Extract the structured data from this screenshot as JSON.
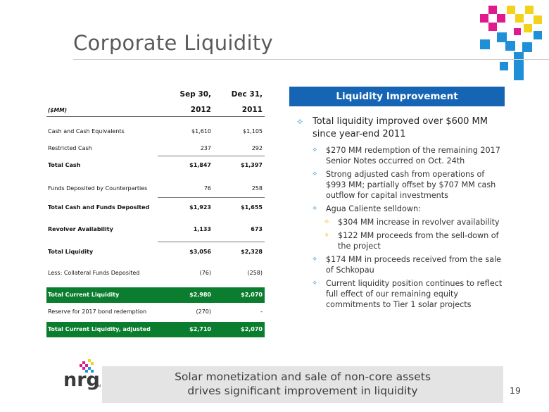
{
  "slide": {
    "title": "Corporate Liquidity",
    "page_number": "19"
  },
  "table": {
    "unit_label": "($MM)",
    "col1_header_line1": "Sep 30,",
    "col1_header_line2": "2012",
    "col2_header_line1": "Dec 31,",
    "col2_header_line2": "2011",
    "rows": [
      {
        "label": "Cash and Cash Equivalents",
        "sep2012": "$1,610",
        "dec2011": "$1,105"
      },
      {
        "label": "Restricted Cash",
        "sep2012": "237",
        "dec2011": "292"
      },
      {
        "label": "Total Cash",
        "sep2012": "$1,847",
        "dec2011": "$1,397"
      },
      {
        "label": "Funds Deposited by Counterparties",
        "sep2012": "76",
        "dec2011": "258"
      },
      {
        "label": "Total Cash and Funds Deposited",
        "sep2012": "$1,923",
        "dec2011": "$1,655"
      },
      {
        "label": "Revolver Availability",
        "sep2012": "1,133",
        "dec2011": "673"
      },
      {
        "label": "Total Liquidity",
        "sep2012": "$3,056",
        "dec2011": "$2,328"
      },
      {
        "label": "Less: Collateral Funds Deposited",
        "sep2012": "(76)",
        "dec2011": "(258)"
      },
      {
        "label": "Total Current Liquidity",
        "sep2012": "$2,980",
        "dec2011": "$2,070"
      },
      {
        "label": "Reserve for 2017 bond redemption",
        "sep2012": "(270)",
        "dec2011": "-"
      },
      {
        "label": "Total Current Liquidity, adjusted",
        "sep2012": "$2,710",
        "dec2011": "$2,070"
      }
    ],
    "highlight_color": "#0a7d2e"
  },
  "panel": {
    "heading": "Liquidity Improvement",
    "heading_color": "#1665b4",
    "main_bullet": "Total liquidity improved over $600 MM since year-end 2011",
    "sub_bullets": [
      "$270 MM redemption of the remaining 2017 Senior Notes occurred on Oct. 24th",
      "Strong adjusted cash from operations of $993 MM; partially offset by $707 MM cash outflow for capital investments",
      "Agua Caliente selldown:",
      "$174 MM in proceeds received from the sale of Schkopau",
      "Current liquidity position continues to reflect full effect of our remaining equity commitments to Tier 1 solar projects"
    ],
    "nested_bullets": [
      "$304 MM increase in revolver availability",
      "$122 MM proceeds from the sell-down of the project"
    ]
  },
  "footer": {
    "line1": "Solar monetization and sale of non-core assets",
    "line2": "drives significant improvement in liquidity"
  },
  "logo": {
    "text": "nrg",
    "trademark": "SM"
  }
}
